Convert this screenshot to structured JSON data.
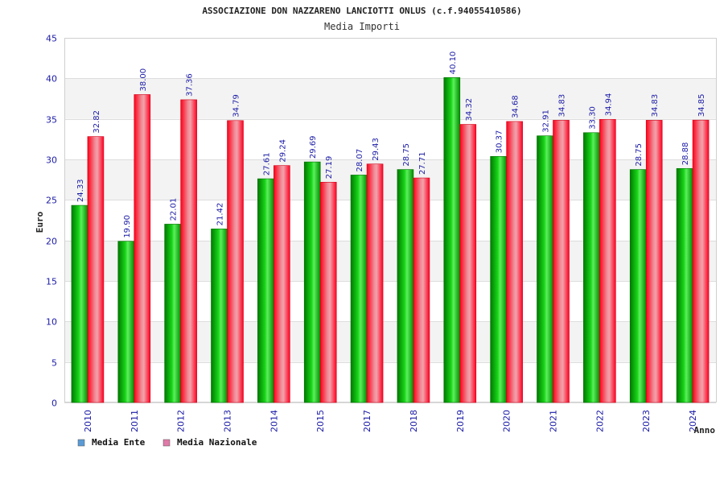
{
  "chart_data": {
    "type": "bar",
    "title": "ASSOCIAZIONE DON NAZZARENO LANCIOTTI ONLUS (c.f.94055410586)",
    "subtitle": "Media Importi",
    "xlabel": "Anno",
    "ylabel": "Euro",
    "ylim": [
      0,
      45
    ],
    "yticks": [
      "0",
      "5",
      "10",
      "15",
      "20",
      "25",
      "30",
      "35",
      "40",
      "45"
    ],
    "categories": [
      "2010",
      "2011",
      "2012",
      "2013",
      "2014",
      "2015",
      "2017",
      "2018",
      "2019",
      "2020",
      "2021",
      "2022",
      "2023",
      "2024"
    ],
    "series": [
      {
        "name": "Media Ente",
        "color": "#00b400",
        "legend_color": "#5b9bd5",
        "values": [
          24.33,
          19.9,
          22.01,
          21.42,
          27.61,
          29.69,
          28.07,
          28.75,
          40.1,
          30.37,
          32.91,
          33.3,
          28.75,
          28.88
        ],
        "labels": [
          "24.33",
          "19.90",
          "22.01",
          "21.42",
          "27.61",
          "29.69",
          "28.07",
          "28.75",
          "40.10",
          "30.37",
          "32.91",
          "33.30",
          "28.75",
          "28.88"
        ]
      },
      {
        "name": "Media Nazionale",
        "color": "#ff1a2e",
        "legend_color": "#e07aa8",
        "values": [
          32.82,
          38.0,
          37.36,
          34.79,
          29.24,
          27.19,
          29.43,
          27.71,
          34.32,
          34.68,
          34.83,
          34.94,
          34.83,
          34.85
        ],
        "labels": [
          "32.82",
          "38.00",
          "37.36",
          "34.79",
          "29.24",
          "27.19",
          "29.43",
          "27.71",
          "34.32",
          "34.68",
          "34.83",
          "34.94",
          "34.83",
          "34.85"
        ]
      }
    ],
    "grid": true,
    "legend_position": "bottom-left"
  }
}
